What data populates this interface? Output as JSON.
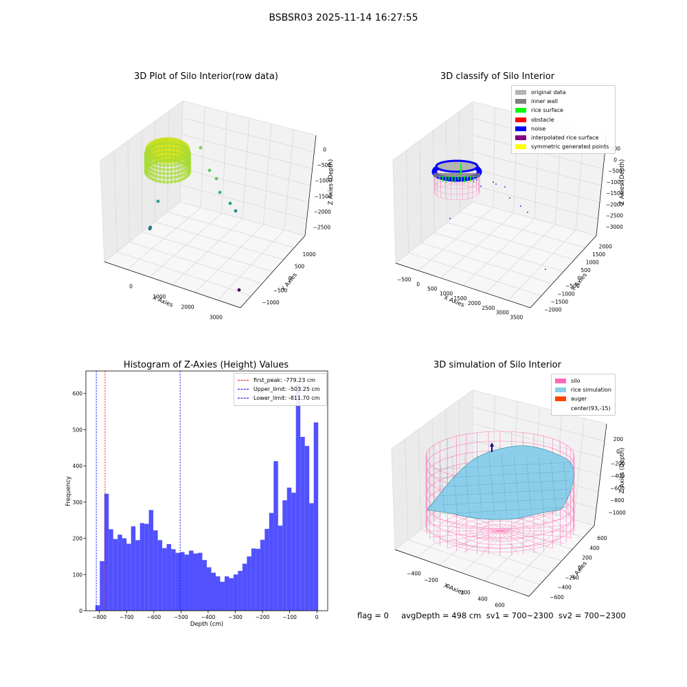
{
  "suptitle": "BSBSR03 2025-11-14 16:27:55",
  "colors": {
    "hist_bar": "#4b4bff",
    "first_peak": "#ff0000",
    "limits": "#0000ff",
    "original_data": "#b3b3b3",
    "inner_wall": "#808080",
    "rice_surface": "#00ff00",
    "obstacle": "#ff0000",
    "noise": "#0000ff",
    "interpolated": "#800080",
    "symmetric": "#ffff00",
    "silo": "#ff69b4",
    "rice_sim": "#87ceeb",
    "auger": "#ff4500"
  },
  "chart_data": [
    {
      "type": "scatter",
      "panel": "raw",
      "title": "3D Plot of Silo Interior(row data)",
      "xlabel": "X Axies",
      "ylabel": "Y Axies",
      "zlabel": "Z Axies (Depth)",
      "xticks": [
        "0",
        "1000",
        "2000",
        "3000"
      ],
      "yticks": [
        "1000",
        "500",
        "0",
        "−500",
        "−1000"
      ],
      "zticks": [
        "0",
        "−500",
        "−1000",
        "−1500",
        "−2000",
        "−2500"
      ],
      "outliers": [
        {
          "x": 1850,
          "y": 600,
          "z": -250
        },
        {
          "x": 2000,
          "y": 400,
          "z": -700
        },
        {
          "x": 2150,
          "y": 300,
          "z": -950
        },
        {
          "x": 2300,
          "y": 100,
          "z": -1400
        },
        {
          "x": 2500,
          "y": -200,
          "z": -1800
        },
        {
          "x": 2600,
          "y": -400,
          "z": -2050
        },
        {
          "x": 800,
          "y": 800,
          "z": -1300
        },
        {
          "x": 400,
          "y": 600,
          "z": -2400
        },
        {
          "x": 3400,
          "y": -1100,
          "z": -2500
        }
      ]
    },
    {
      "type": "scatter",
      "panel": "classify",
      "title": "3D classify of Silo Interior",
      "xlabel": "X Axies",
      "ylabel": "Y Axies",
      "zlabel": "Z Axies (Depth)",
      "xticks": [
        "−500",
        "0",
        "500",
        "1000",
        "1500",
        "2000",
        "2500",
        "3000",
        "3500"
      ],
      "yticks": [
        "2000",
        "1500",
        "1000",
        "500",
        "0",
        "−500",
        "−1000",
        "−1500",
        "−2000"
      ],
      "zticks": [
        "500",
        "0",
        "−500",
        "−1000",
        "−1500",
        "−2000",
        "−2500",
        "−3000"
      ],
      "legend": [
        {
          "label": "original data",
          "color": "#b3b3b3"
        },
        {
          "label": "inner wall",
          "color": "#808080"
        },
        {
          "label": "rice surface",
          "color": "#00ff00"
        },
        {
          "label": "obstacle",
          "color": "#ff0000"
        },
        {
          "label": "noise",
          "color": "#0000ff"
        },
        {
          "label": "interpolated rice surface",
          "color": "#800080"
        },
        {
          "label": "symmetric generated points",
          "color": "#ffff00"
        }
      ]
    },
    {
      "type": "bar",
      "panel": "histogram",
      "title": "Histogram of Z-Axies (Height) Values",
      "xlabel": "Depth (cm)",
      "ylabel": "Frequency",
      "xlim": [
        -850,
        40
      ],
      "ylim": [
        0,
        662
      ],
      "xticks": [
        -800,
        -700,
        -600,
        -500,
        -400,
        -300,
        -200,
        -100,
        0
      ],
      "yticks": [
        0,
        100,
        200,
        300,
        400,
        500,
        600
      ],
      "bin_start": -815,
      "bin_width": 16.4,
      "values": [
        15,
        137,
        323,
        225,
        198,
        210,
        200,
        185,
        233,
        195,
        242,
        240,
        278,
        222,
        195,
        173,
        184,
        170,
        160,
        162,
        155,
        166,
        158,
        160,
        140,
        120,
        105,
        95,
        80,
        95,
        90,
        100,
        110,
        130,
        150,
        172,
        171,
        196,
        226,
        270,
        413,
        235,
        305,
        340,
        326,
        625,
        480,
        455,
        297,
        520
      ],
      "lines": [
        {
          "label": "first_peak: -779.23 cm",
          "x": -779.23,
          "color": "#ff0000"
        },
        {
          "label": "Upper_limit: -503.25 cm",
          "x": -503.25,
          "color": "#0000ff"
        },
        {
          "label": "Lower_limit: -811.70 cm",
          "x": -811.7,
          "color": "#0000ff"
        }
      ]
    },
    {
      "type": "surface",
      "panel": "simulation",
      "title": "3D simulation of Silo Interior",
      "xlabel": "X Axies",
      "ylabel": "Y Axies",
      "zlabel": "Z Axies (Depth)",
      "xticks": [
        "−400",
        "−200",
        "0",
        "200",
        "400",
        "600"
      ],
      "yticks": [
        "600",
        "400",
        "200",
        "0",
        "−200",
        "−400",
        "−600"
      ],
      "zticks": [
        "200",
        "0",
        "−200",
        "−400",
        "−600",
        "−800",
        "−1000"
      ],
      "legend": [
        {
          "label": "silo",
          "color": "#ff69b4"
        },
        {
          "label": "rice simulation",
          "color": "#87ceeb"
        },
        {
          "label": "auger",
          "color": "#ff4500"
        },
        {
          "label": "center(93,-15)",
          "color": ""
        }
      ]
    }
  ],
  "footer": {
    "text": "flag = 0     avgDepth = 498 cm  sv1 = 700~2300  sv2 = 700~2300"
  }
}
